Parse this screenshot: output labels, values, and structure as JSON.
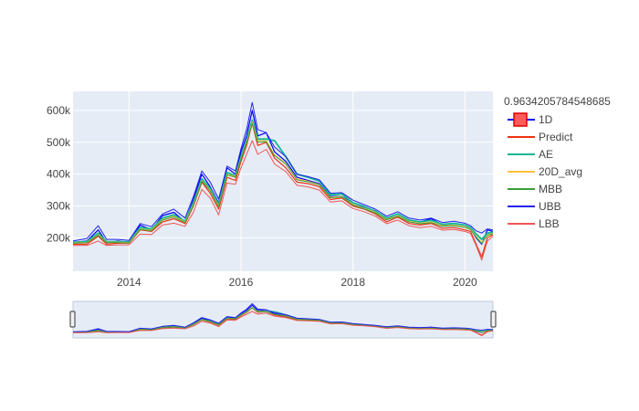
{
  "chart_data": {
    "type": "line",
    "title": "",
    "xlabel": "",
    "ylabel": "",
    "legend_title": "0.9634205784548685",
    "legend_position": "right",
    "grid": true,
    "x_range": [
      2013.0,
      2020.5
    ],
    "ylim": [
      95000,
      660000
    ],
    "x_ticks": [
      {
        "value": 2014,
        "label": "2014"
      },
      {
        "value": 2016,
        "label": "2016"
      },
      {
        "value": 2018,
        "label": "2018"
      },
      {
        "value": 2020,
        "label": "2020"
      }
    ],
    "y_ticks": [
      {
        "value": 200000,
        "label": "200k"
      },
      {
        "value": 300000,
        "label": "300k"
      },
      {
        "value": 400000,
        "label": "400k"
      },
      {
        "value": 500000,
        "label": "500k"
      },
      {
        "value": 600000,
        "label": "600k"
      }
    ],
    "x": [
      2013.0,
      2013.25,
      2013.45,
      2013.6,
      2013.8,
      2014.0,
      2014.2,
      2014.4,
      2014.6,
      2014.8,
      2015.0,
      2015.15,
      2015.3,
      2015.45,
      2015.6,
      2015.75,
      2015.9,
      2016.0,
      2016.1,
      2016.2,
      2016.3,
      2016.45,
      2016.6,
      2016.8,
      2017.0,
      2017.2,
      2017.4,
      2017.6,
      2017.8,
      2018.0,
      2018.2,
      2018.4,
      2018.6,
      2018.8,
      2019.0,
      2019.2,
      2019.4,
      2019.6,
      2019.8,
      2020.0,
      2020.1,
      2020.2,
      2020.3,
      2020.4,
      2020.5
    ],
    "series": [
      {
        "name": "1D",
        "color": "#0000ff",
        "width": 1.2,
        "values": [
          185000,
          190000,
          225000,
          185000,
          190000,
          185000,
          240000,
          225000,
          270000,
          280000,
          250000,
          320000,
          400000,
          360000,
          310000,
          420000,
          400000,
          470000,
          520000,
          600000,
          520000,
          530000,
          470000,
          440000,
          390000,
          380000,
          370000,
          330000,
          330000,
          310000,
          295000,
          285000,
          260000,
          275000,
          255000,
          250000,
          260000,
          240000,
          245000,
          240000,
          230000,
          200000,
          180000,
          225000,
          220000
        ]
      },
      {
        "name": "Predict",
        "color": "#ee3311",
        "width": 1.2,
        "values": [
          180000,
          180000,
          205000,
          180000,
          183000,
          183000,
          225000,
          220000,
          250000,
          260000,
          245000,
          300000,
          375000,
          340000,
          290000,
          390000,
          380000,
          440000,
          490000,
          560000,
          490000,
          500000,
          450000,
          420000,
          375000,
          370000,
          360000,
          320000,
          325000,
          300000,
          290000,
          275000,
          250000,
          265000,
          245000,
          240000,
          245000,
          230000,
          232000,
          225000,
          220000,
          180000,
          140000,
          200000,
          210000
        ]
      },
      {
        "name": "AE",
        "color": "#11b894",
        "width": 1.8,
        "values": [
          186000,
          188000,
          215000,
          188000,
          188000,
          187000,
          232000,
          228000,
          262000,
          272000,
          252000,
          310000,
          385000,
          355000,
          305000,
          405000,
          395000,
          455000,
          505000,
          570000,
          510000,
          510000,
          505000,
          455000,
          400000,
          390000,
          378000,
          335000,
          338000,
          310000,
          298000,
          283000,
          262000,
          275000,
          256000,
          250000,
          255000,
          242000,
          245000,
          240000,
          232000,
          212000,
          195000,
          215000,
          218000
        ]
      },
      {
        "name": "20D_avg",
        "color": "#ffc13b",
        "width": 1.0,
        "values": [
          184000,
          186000,
          210000,
          186000,
          186000,
          185000,
          228000,
          224000,
          258000,
          268000,
          250000,
          305000,
          380000,
          350000,
          300000,
          400000,
          392000,
          450000,
          500000,
          565000,
          505000,
          505000,
          460000,
          435000,
          385000,
          378000,
          368000,
          328000,
          330000,
          305000,
          293000,
          280000,
          258000,
          270000,
          252000,
          246000,
          250000,
          238000,
          240000,
          235000,
          228000,
          205000,
          185000,
          210000,
          215000
        ]
      },
      {
        "name": "MBB",
        "color": "#3a9e3a",
        "width": 1.0,
        "values": [
          183000,
          185000,
          208000,
          185000,
          185000,
          184000,
          226000,
          222000,
          256000,
          265000,
          248000,
          302000,
          378000,
          348000,
          298000,
          398000,
          390000,
          448000,
          498000,
          560000,
          500000,
          502000,
          458000,
          432000,
          382000,
          376000,
          366000,
          326000,
          328000,
          303000,
          291000,
          278000,
          256000,
          268000,
          250000,
          244000,
          248000,
          236000,
          238000,
          233000,
          226000,
          202000,
          182000,
          208000,
          213000
        ]
      },
      {
        "name": "UBB",
        "color": "#2222ee",
        "width": 1.0,
        "values": [
          190000,
          198000,
          238000,
          195000,
          195000,
          192000,
          245000,
          235000,
          275000,
          290000,
          262000,
          330000,
          410000,
          375000,
          322000,
          425000,
          410000,
          480000,
          540000,
          625000,
          540000,
          530000,
          485000,
          455000,
          400000,
          392000,
          382000,
          340000,
          342000,
          318000,
          304000,
          290000,
          268000,
          282000,
          262000,
          256000,
          262000,
          248000,
          252000,
          246000,
          238000,
          222000,
          215000,
          228000,
          225000
        ]
      },
      {
        "name": "LBB",
        "color": "#ef5555",
        "width": 1.0,
        "values": [
          176000,
          176000,
          190000,
          176000,
          178000,
          178000,
          212000,
          210000,
          240000,
          246000,
          236000,
          280000,
          352000,
          325000,
          272000,
          372000,
          368000,
          420000,
          462000,
          505000,
          462000,
          478000,
          432000,
          408000,
          365000,
          360000,
          350000,
          312000,
          316000,
          292000,
          282000,
          268000,
          244000,
          256000,
          238000,
          232000,
          236000,
          224000,
          226000,
          220000,
          214000,
          175000,
          130000,
          190000,
          205000
        ]
      }
    ],
    "legend_entries": [
      "1D",
      "Predict",
      "AE",
      "20D_avg",
      "MBB",
      "UBB",
      "LBB"
    ]
  }
}
